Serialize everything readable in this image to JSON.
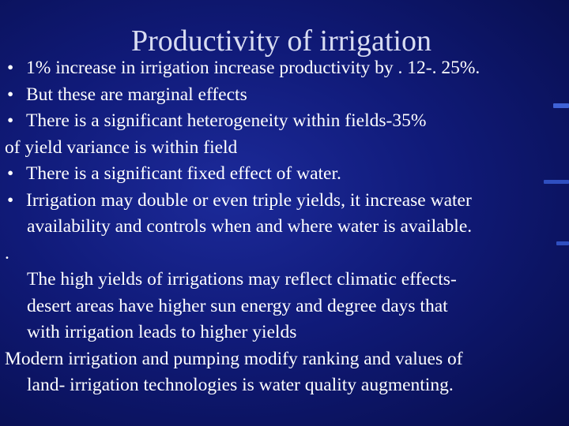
{
  "slide": {
    "title": "Productivity  of irrigation",
    "bullet_glyph": "•",
    "lines": [
      {
        "text": "1% increase in irrigation increase productivity by . 12-. 25%."
      },
      {
        "text": "But these are marginal effects"
      },
      {
        "text": "There is a significant heterogeneity within fields-35%"
      },
      {
        "text": "of yield variance is within field"
      },
      {
        "text": "There is a significant fixed effect of water."
      },
      {
        "text": "Irrigation may double or even triple yields, it increase water"
      },
      {
        "text": "availability and controls when and where water is available."
      },
      {
        "text": "."
      },
      {
        "text": "The  high yields of irrigations may reflect climatic effects-"
      },
      {
        "text": "desert areas have higher sun energy and degree days that"
      },
      {
        "text": "with irrigation leads to higher yields"
      },
      {
        "text": "Modern irrigation and pumping modify ranking and values of"
      },
      {
        "text": "land- irrigation technologies is water quality augmenting."
      }
    ]
  }
}
